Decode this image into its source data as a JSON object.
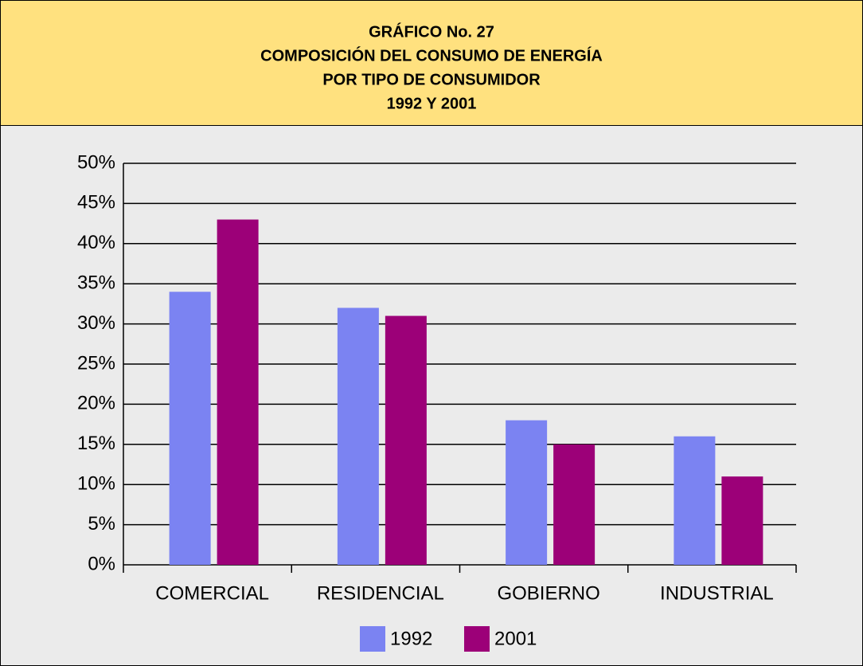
{
  "chart_data": {
    "type": "bar",
    "title": [
      "GRÁFICO No. 27",
      "COMPOSICIÓN DEL CONSUMO DE ENERGÍA",
      "POR TIPO DE CONSUMIDOR",
      "1992 Y 2001"
    ],
    "categories": [
      "COMERCIAL",
      "RESIDENCIAL",
      "GOBIERNO",
      "INDUSTRIAL"
    ],
    "series": [
      {
        "name": "1992",
        "color": "#7b83f2",
        "values": [
          34,
          32,
          18,
          16
        ]
      },
      {
        "name": "2001",
        "color": "#9c0078",
        "values": [
          43,
          31,
          15,
          11
        ]
      }
    ],
    "ylim": [
      0,
      50
    ],
    "yticks": [
      {
        "value": 0,
        "label": "0%"
      },
      {
        "value": 5,
        "label": "5%"
      },
      {
        "value": 10,
        "label": "10%"
      },
      {
        "value": 15,
        "label": "15%"
      },
      {
        "value": 20,
        "label": "20%"
      },
      {
        "value": 25,
        "label": "25%"
      },
      {
        "value": 30,
        "label": "30%"
      },
      {
        "value": 35,
        "label": "35%"
      },
      {
        "value": 40,
        "label": "40%"
      },
      {
        "value": 45,
        "label": "45%"
      },
      {
        "value": 50,
        "label": "50%"
      }
    ],
    "grid": true,
    "legend": "bottom"
  }
}
